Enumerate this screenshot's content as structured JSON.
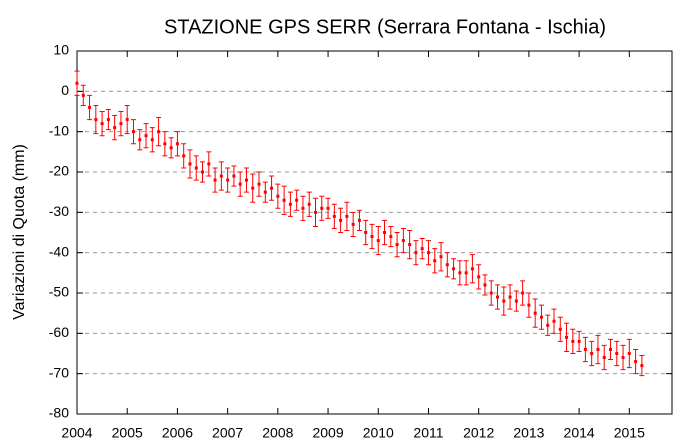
{
  "chart_data": {
    "type": "errorbar-scatter",
    "title": "STAZIONE GPS SERR (Serrara Fontana - Ischia)",
    "y_label": "Variazioni di Quota (mm)",
    "x": [
      2004.0,
      2004.125,
      2004.25,
      2004.375,
      2004.5,
      2004.625,
      2004.75,
      2004.875,
      2005.0,
      2005.125,
      2005.25,
      2005.375,
      2005.5,
      2005.625,
      2005.75,
      2005.875,
      2006.0,
      2006.125,
      2006.25,
      2006.375,
      2006.5,
      2006.625,
      2006.75,
      2006.875,
      2007.0,
      2007.125,
      2007.25,
      2007.375,
      2007.5,
      2007.625,
      2007.75,
      2007.875,
      2008.0,
      2008.125,
      2008.25,
      2008.375,
      2008.5,
      2008.625,
      2008.75,
      2008.875,
      2009.0,
      2009.125,
      2009.25,
      2009.375,
      2009.5,
      2009.625,
      2009.75,
      2009.875,
      2010.0,
      2010.125,
      2010.25,
      2010.375,
      2010.5,
      2010.625,
      2010.75,
      2010.875,
      2011.0,
      2011.125,
      2011.25,
      2011.375,
      2011.5,
      2011.625,
      2011.75,
      2011.875,
      2012.0,
      2012.125,
      2012.25,
      2012.375,
      2012.5,
      2012.625,
      2012.75,
      2012.875,
      2013.0,
      2013.125,
      2013.25,
      2013.375,
      2013.5,
      2013.625,
      2013.75,
      2013.875,
      2014.0,
      2014.125,
      2014.25,
      2014.375,
      2014.5,
      2014.625,
      2014.75,
      2014.875,
      2015.0,
      2015.125,
      2015.25
    ],
    "series": [
      {
        "color": "#ff0000",
        "values": [
          2,
          -1,
          -4,
          -7,
          -8,
          -7,
          -9,
          -8,
          -7,
          -10,
          -12,
          -11,
          -12,
          -10,
          -13,
          -14,
          -13,
          -16,
          -18,
          -19,
          -20,
          -18,
          -22,
          -21,
          -22,
          -21,
          -23,
          -22,
          -24,
          -23,
          -25,
          -24,
          -26,
          -27,
          -28,
          -27,
          -29,
          -28,
          -30,
          -29,
          -29,
          -31,
          -32,
          -31,
          -33,
          -32,
          -35,
          -36,
          -37,
          -35,
          -36,
          -38,
          -37,
          -38,
          -40,
          -39,
          -40,
          -42,
          -41,
          -43,
          -44,
          -45,
          -45,
          -44,
          -46,
          -48,
          -50,
          -51,
          -52,
          -51,
          -52,
          -50,
          -53,
          -55,
          -56,
          -58,
          -57,
          -59,
          -61,
          -62,
          -62,
          -64,
          -65,
          -64,
          -66,
          -64,
          -65,
          -66,
          -65,
          -67,
          -68
        ],
        "errors": [
          3,
          2.5,
          3,
          3.5,
          3,
          2.5,
          3,
          3,
          3.5,
          3,
          2.5,
          3,
          3,
          3.5,
          3,
          2.5,
          3,
          3,
          3.5,
          3,
          2.5,
          3,
          3,
          3.5,
          3,
          2.5,
          3,
          3,
          3.5,
          3,
          2.5,
          3,
          3,
          3.5,
          3,
          2.5,
          3,
          3,
          3.5,
          3,
          2.5,
          3,
          3,
          3.5,
          3,
          2.5,
          3,
          3,
          3.5,
          3,
          2.5,
          3,
          3,
          3.5,
          3,
          2.5,
          3,
          3,
          3.5,
          3,
          2.5,
          3,
          3,
          3.5,
          3,
          2.5,
          3,
          3,
          3.5,
          3,
          2.5,
          3,
          3,
          3.5,
          3,
          2.5,
          3,
          3,
          3.5,
          3,
          2.5,
          3,
          3,
          3.5,
          3,
          2.5,
          3,
          3,
          3.5,
          3,
          2.5
        ]
      }
    ],
    "xlim": [
      2004,
      2015.85
    ],
    "xticks": [
      2004,
      2005,
      2006,
      2007,
      2008,
      2009,
      2010,
      2011,
      2012,
      2013,
      2014,
      2015
    ],
    "ylim": [
      -80,
      10
    ],
    "yticks": [
      -80,
      -70,
      -60,
      -50,
      -40,
      -30,
      -20,
      -10,
      0,
      10
    ],
    "grid": true
  }
}
